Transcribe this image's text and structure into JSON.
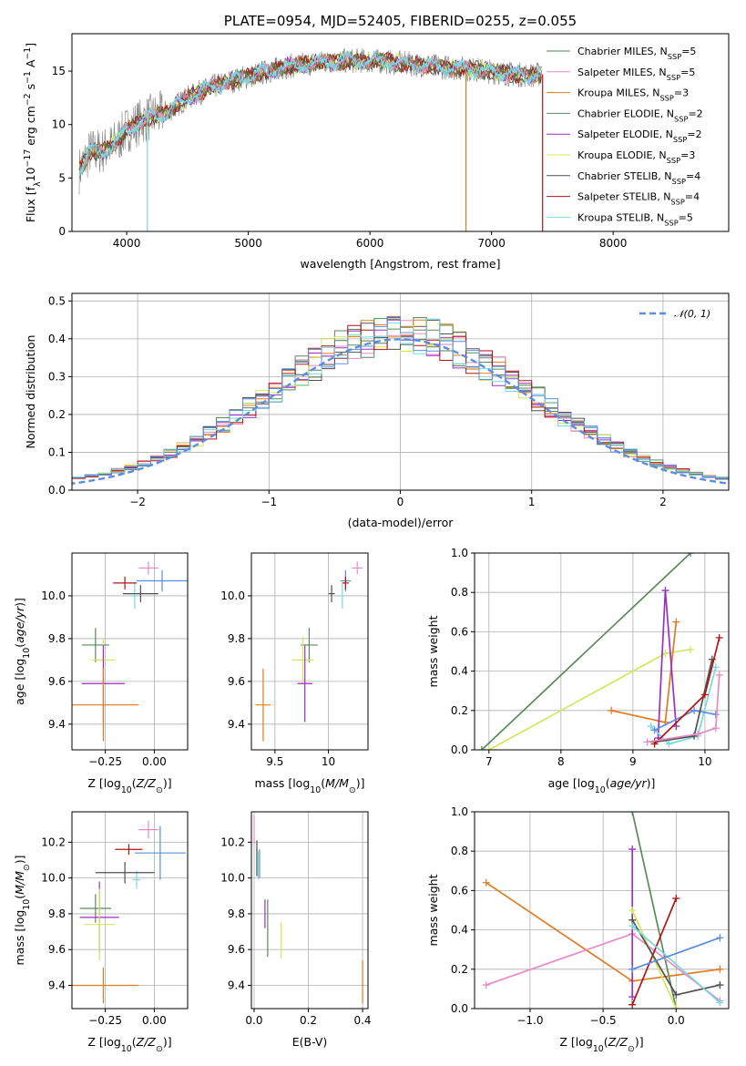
{
  "colors": {
    "Chabrier MILES": "#4f7f4f",
    "Salpeter MILES": "#e88bc4",
    "Kroupa MILES": "#e07b20",
    "Chabrier ELODIE": "#5a8a5a",
    "Salpeter ELODIE": "#9b30c0",
    "Kroupa ELODIE": "#d2e85a",
    "Chabrier STELIB": "#505050",
    "Salpeter STELIB": "#b01515",
    "Kroupa STELIB": "#7ad8e0",
    "blue": "#5b8ee0",
    "data": "#808080"
  },
  "chart_data": [
    {
      "id": "spectrum",
      "type": "line",
      "title": "PLATE=0954, MJD=52405, FIBERID=0255, z=0.055",
      "xlabel": "wavelength [Angstrom, rest frame]",
      "ylabel_prefix": "Flux [f",
      "ylabel_rest": "10",
      "xlim": [
        3550,
        8950
      ],
      "ylim": [
        0,
        18.5
      ],
      "xticks": [
        4000,
        5000,
        6000,
        7000,
        8000
      ],
      "yticks": [
        0,
        5,
        10,
        15
      ],
      "legend": [
        {
          "name": "Chabrier MILES",
          "nssp": "5"
        },
        {
          "name": "Salpeter MILES",
          "nssp": "5"
        },
        {
          "name": "Kroupa MILES",
          "nssp": "3"
        },
        {
          "name": "Chabrier ELODIE",
          "nssp": "2"
        },
        {
          "name": "Salpeter ELODIE",
          "nssp": "2"
        },
        {
          "name": "Kroupa ELODIE",
          "nssp": "3"
        },
        {
          "name": "Chabrier STELIB",
          "nssp": "4"
        },
        {
          "name": "Salpeter STELIB",
          "nssp": "4"
        },
        {
          "name": "Kroupa STELIB",
          "nssp": "5"
        }
      ],
      "continuum": [
        [
          3600,
          5.5
        ],
        [
          3700,
          7.5
        ],
        [
          3800,
          7.5
        ],
        [
          3900,
          8.2
        ],
        [
          4000,
          9.5
        ],
        [
          4100,
          10.2
        ],
        [
          4200,
          10.7
        ],
        [
          4300,
          11.0
        ],
        [
          4500,
          12.5
        ],
        [
          4700,
          13.5
        ],
        [
          4900,
          14.2
        ],
        [
          5100,
          14.8
        ],
        [
          5300,
          15.4
        ],
        [
          5500,
          15.7
        ],
        [
          5700,
          15.9
        ],
        [
          5900,
          16.0
        ],
        [
          6100,
          15.9
        ],
        [
          6300,
          15.7
        ],
        [
          6500,
          15.5
        ],
        [
          6700,
          15.3
        ],
        [
          6900,
          15.1
        ],
        [
          7100,
          14.8
        ],
        [
          7300,
          14.6
        ],
        [
          7400,
          14.7
        ]
      ],
      "cutoffs": [
        {
          "name": "Kroupa STELIB",
          "x": 4170
        },
        {
          "name": "Kroupa MILES",
          "x": 6790
        },
        {
          "name": "Salpeter STELIB",
          "x": 7420
        }
      ]
    },
    {
      "id": "residuals",
      "type": "histogram",
      "xlabel": "(data-model)/error",
      "ylabel": "Normed distribution",
      "xlim": [
        -2.5,
        2.5
      ],
      "ylim": [
        0,
        0.52
      ],
      "xticks": [
        -2,
        -1,
        0,
        1,
        2
      ],
      "yticks": [
        0.0,
        0.1,
        0.2,
        0.3,
        0.4,
        0.5
      ],
      "bin_width": 0.1,
      "gaussian": {
        "mean": 0,
        "sigma": 1
      }
    },
    {
      "id": "age_vs_Z",
      "type": "errorbar",
      "xlabel": "Z [log",
      "ylabel": "age  [log",
      "xlim": [
        -0.42,
        0.17
      ],
      "ylim": [
        9.28,
        10.2
      ],
      "xticks": [
        -0.25,
        0.0
      ],
      "xticklabels": [
        "−0.25",
        "0.00"
      ],
      "yticks": [
        9.4,
        9.6,
        9.8,
        10.0
      ],
      "points": [
        {
          "name": "Salpeter MILES",
          "x": -0.03,
          "y": 10.13,
          "xerr": 0.05,
          "yerr": 0.03
        },
        {
          "name": "Kroupa STELIB",
          "x": -0.1,
          "y": 10.0,
          "xerr": 0.02,
          "yerr": 0.06
        },
        {
          "name": "blue",
          "x": 0.04,
          "y": 10.07,
          "xerr": 0.13,
          "yerr": 0.05
        },
        {
          "name": "Chabrier STELIB",
          "x": -0.07,
          "y": 10.01,
          "xerr": 0.09,
          "yerr": 0.04
        },
        {
          "name": "Salpeter STELIB",
          "x": -0.15,
          "y": 10.06,
          "xerr": 0.06,
          "yerr": 0.03
        },
        {
          "name": "Chabrier ELODIE",
          "x": -0.3,
          "y": 9.77,
          "xerr": 0.07,
          "yerr": 0.08
        },
        {
          "name": "Kroupa ELODIE",
          "x": -0.26,
          "y": 9.7,
          "xerr": 0.06,
          "yerr": 0.1
        },
        {
          "name": "Salpeter ELODIE",
          "x": -0.26,
          "y": 9.59,
          "xerr": 0.11,
          "yerr": 0.18
        },
        {
          "name": "Kroupa MILES",
          "x": -0.26,
          "y": 9.49,
          "xerr": 0.18,
          "yerr": 0.17
        }
      ]
    },
    {
      "id": "age_vs_mass",
      "type": "errorbar",
      "xlabel": "mass [log",
      "xlim": [
        9.28,
        10.37
      ],
      "ylim": [
        9.28,
        10.2
      ],
      "xticks": [
        9.5,
        10.0
      ],
      "yticks": [
        9.4,
        9.6,
        9.8,
        10.0
      ],
      "points": [
        {
          "name": "Salpeter MILES",
          "x": 10.27,
          "y": 10.13,
          "xerr": 0.05,
          "yerr": 0.03
        },
        {
          "name": "Kroupa STELIB",
          "x": 10.13,
          "y": 10.0,
          "xerr": 0.03,
          "yerr": 0.06
        },
        {
          "name": "blue",
          "x": 10.16,
          "y": 10.07,
          "xerr": 0.05,
          "yerr": 0.05
        },
        {
          "name": "Chabrier STELIB",
          "x": 10.03,
          "y": 10.01,
          "xerr": 0.03,
          "yerr": 0.04
        },
        {
          "name": "Salpeter STELIB",
          "x": 10.16,
          "y": 10.06,
          "xerr": 0.03,
          "yerr": 0.03
        },
        {
          "name": "Chabrier ELODIE",
          "x": 9.82,
          "y": 9.77,
          "xerr": 0.08,
          "yerr": 0.08
        },
        {
          "name": "Kroupa ELODIE",
          "x": 9.76,
          "y": 9.7,
          "xerr": 0.1,
          "yerr": 0.11
        },
        {
          "name": "Salpeter ELODIE",
          "x": 9.78,
          "y": 9.59,
          "xerr": 0.07,
          "yerr": 0.18
        },
        {
          "name": "Kroupa MILES",
          "x": 9.39,
          "y": 9.49,
          "xerr": 0.07,
          "yerr": 0.17
        }
      ]
    },
    {
      "id": "massweight_vs_age",
      "type": "line",
      "xlabel": "age  [log",
      "ylabel": "mass weight",
      "xlim": [
        6.8,
        10.33
      ],
      "ylim": [
        0,
        1
      ],
      "xticks": [
        7,
        8,
        9,
        10
      ],
      "yticks": [
        0.0,
        0.2,
        0.4,
        0.6,
        0.8,
        1.0
      ],
      "series": [
        {
          "name": "Chabrier ELODIE",
          "points": [
            [
              6.9,
              0.0
            ],
            [
              9.8,
              1.0
            ]
          ]
        },
        {
          "name": "Kroupa ELODIE",
          "points": [
            [
              7.0,
              0.0
            ],
            [
              9.45,
              0.49
            ],
            [
              9.8,
              0.51
            ]
          ]
        },
        {
          "name": "Kroupa MILES",
          "points": [
            [
              8.7,
              0.2
            ],
            [
              9.45,
              0.14
            ],
            [
              9.6,
              0.65
            ]
          ]
        },
        {
          "name": "Salpeter ELODIE",
          "points": [
            [
              9.35,
              0.06
            ],
            [
              9.45,
              0.81
            ],
            [
              9.6,
              0.12
            ]
          ]
        },
        {
          "name": "Kroupa STELIB",
          "points": [
            [
              9.25,
              0.12
            ],
            [
              9.5,
              0.03
            ],
            [
              9.9,
              0.07
            ],
            [
              10.15,
              0.42
            ]
          ]
        },
        {
          "name": "blue",
          "points": [
            [
              9.3,
              0.1
            ],
            [
              9.85,
              0.2
            ],
            [
              10.15,
              0.18
            ]
          ]
        },
        {
          "name": "Chabrier STELIB",
          "points": [
            [
              9.3,
              0.04
            ],
            [
              9.85,
              0.07
            ],
            [
              10.1,
              0.46
            ]
          ]
        },
        {
          "name": "Salpeter STELIB",
          "points": [
            [
              9.3,
              0.03
            ],
            [
              10.0,
              0.28
            ],
            [
              10.2,
              0.57
            ]
          ]
        },
        {
          "name": "Salpeter MILES",
          "points": [
            [
              9.2,
              0.04
            ],
            [
              9.9,
              0.08
            ],
            [
              10.15,
              0.11
            ],
            [
              10.2,
              0.38
            ]
          ]
        }
      ]
    },
    {
      "id": "mass_vs_Z",
      "type": "errorbar",
      "xlabel": "Z [log",
      "ylabel": "mass [log",
      "xlim": [
        -0.42,
        0.17
      ],
      "ylim": [
        9.27,
        10.37
      ],
      "xticks": [
        -0.25,
        0.0
      ],
      "xticklabels": [
        "−0.25",
        "0.00"
      ],
      "yticks": [
        9.4,
        9.6,
        9.8,
        10.0,
        10.2
      ],
      "points": [
        {
          "name": "Salpeter MILES",
          "x": -0.03,
          "y": 10.27,
          "xerr": 0.05,
          "yerr": 0.05
        },
        {
          "name": "Kroupa STELIB",
          "x": -0.09,
          "y": 9.99,
          "xerr": 0.02,
          "yerr": 0.05
        },
        {
          "name": "blue",
          "x": 0.03,
          "y": 10.14,
          "xerr": 0.13,
          "yerr": 0.15
        },
        {
          "name": "Chabrier STELIB",
          "x": -0.15,
          "y": 10.03,
          "xerr": 0.15,
          "yerr": 0.06
        },
        {
          "name": "Salpeter STELIB",
          "x": -0.13,
          "y": 10.16,
          "xerr": 0.07,
          "yerr": 0.03
        },
        {
          "name": "Chabrier ELODIE",
          "x": -0.3,
          "y": 9.83,
          "xerr": 0.08,
          "yerr": 0.08
        },
        {
          "name": "Salpeter ELODIE",
          "x": -0.28,
          "y": 9.78,
          "xerr": 0.1,
          "yerr": 0.2
        },
        {
          "name": "Kroupa ELODIE",
          "x": -0.28,
          "y": 9.74,
          "xerr": 0.08,
          "yerr": 0.2
        },
        {
          "name": "Kroupa MILES",
          "x": -0.26,
          "y": 9.4,
          "xerr": 0.18,
          "yerr": 0.1
        }
      ]
    },
    {
      "id": "mass_vs_ebv",
      "type": "errorbar",
      "xlabel": "E(B-V)",
      "xlim": [
        -0.01,
        0.42
      ],
      "ylim": [
        9.27,
        10.37
      ],
      "xticks": [
        0.0,
        0.2,
        0.4
      ],
      "xticklabels": [
        "0.0",
        "0.2",
        "0.4"
      ],
      "yticks": [
        9.4,
        9.6,
        9.8,
        10.0,
        10.2
      ],
      "points": [
        {
          "name": "Salpeter MILES",
          "x": 0.0,
          "y": 10.27,
          "xerr": 0,
          "yerr": 0.08
        },
        {
          "name": "Chabrier STELIB",
          "x": 0.01,
          "y": 10.11,
          "xerr": 0,
          "yerr": 0.1
        },
        {
          "name": "Kroupa STELIB",
          "x": 0.015,
          "y": 10.07,
          "xerr": 0,
          "yerr": 0.08
        },
        {
          "name": "blue",
          "x": 0.02,
          "y": 10.08,
          "xerr": 0,
          "yerr": 0.08
        },
        {
          "name": "Salpeter ELODIE",
          "x": 0.04,
          "y": 9.8,
          "xerr": 0,
          "yerr": 0.08
        },
        {
          "name": "Chabrier ELODIE",
          "x": 0.05,
          "y": 9.72,
          "xerr": 0,
          "yerr": 0.16
        },
        {
          "name": "Kroupa ELODIE",
          "x": 0.1,
          "y": 9.65,
          "xerr": 0,
          "yerr": 0.1
        },
        {
          "name": "Kroupa MILES",
          "x": 0.4,
          "y": 9.42,
          "xerr": 0,
          "yerr": 0.12
        }
      ]
    },
    {
      "id": "massweight_vs_Z",
      "type": "line",
      "xlabel": "Z [log",
      "ylabel": "mass weight",
      "xlim": [
        -1.38,
        0.36
      ],
      "ylim": [
        0,
        1
      ],
      "xticks": [
        -1.0,
        -0.5,
        0.0
      ],
      "xticklabels": [
        "−1.0",
        "−0.5",
        "0.0"
      ],
      "yticks": [
        0.0,
        0.2,
        0.4,
        0.6,
        0.8,
        1.0
      ],
      "series": [
        {
          "name": "Chabrier ELODIE",
          "points": [
            [
              -0.3,
              1.0
            ],
            [
              0.0,
              0.0
            ]
          ]
        },
        {
          "name": "Kroupa MILES",
          "points": [
            [
              -1.3,
              0.64
            ],
            [
              -0.3,
              0.14
            ],
            [
              0.3,
              0.2
            ]
          ]
        },
        {
          "name": "Salpeter MILES",
          "points": [
            [
              -1.3,
              0.12
            ],
            [
              -0.3,
              0.38
            ],
            [
              0.3,
              0.04
            ]
          ]
        },
        {
          "name": "Salpeter ELODIE",
          "points": [
            [
              -0.3,
              0.81
            ],
            [
              -0.3,
              0.06
            ]
          ]
        },
        {
          "name": "Kroupa ELODIE",
          "points": [
            [
              -0.3,
              0.5
            ],
            [
              0.0,
              0.0
            ]
          ]
        },
        {
          "name": "Salpeter STELIB",
          "points": [
            [
              -0.3,
              0.02
            ],
            [
              0.0,
              0.56
            ]
          ]
        },
        {
          "name": "Chabrier STELIB",
          "points": [
            [
              -0.3,
              0.45
            ],
            [
              0.0,
              0.07
            ],
            [
              0.3,
              0.12
            ]
          ]
        },
        {
          "name": "Kroupa STELIB",
          "points": [
            [
              -0.3,
              0.42
            ],
            [
              0.3,
              0.03
            ]
          ]
        },
        {
          "name": "blue",
          "points": [
            [
              -0.3,
              0.2
            ],
            [
              0.3,
              0.36
            ]
          ]
        }
      ]
    }
  ]
}
